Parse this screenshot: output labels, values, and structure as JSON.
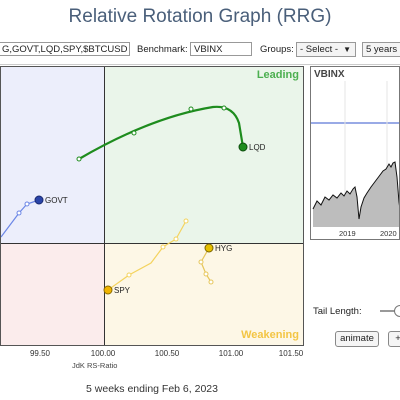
{
  "header": {
    "title": "Relative Rotation Graph (RRG)"
  },
  "controls": {
    "symbols_value": "G,GOVT,LQD,SPY,$BTCUSD",
    "benchmark_label": "Benchmark:",
    "benchmark_value": "VBINX",
    "groups_label": "Groups:",
    "groups_selected": "- Select -",
    "period_selected": "5 years"
  },
  "quadrants": {
    "leading": "Leading",
    "weakening": "Weakening"
  },
  "x_axis": {
    "label": "JdK RS-Ratio",
    "ticks": [
      "99.50",
      "100.00",
      "100.50",
      "101.00",
      "101.50"
    ]
  },
  "symbols": [
    {
      "name": "LQD",
      "color": "#1e8c1e"
    },
    {
      "name": "GOVT",
      "color": "#3a5fcd"
    },
    {
      "name": "HYG",
      "color": "#e6c000"
    },
    {
      "name": "SPY",
      "color": "#f2c12e"
    }
  ],
  "mini_chart": {
    "symbol": "VBINX",
    "years": [
      "2019",
      "2020"
    ]
  },
  "tail": {
    "label": "Tail Length:"
  },
  "buttons": {
    "animate": "animate",
    "plus": "+"
  },
  "footer": {
    "period_text": "5 weeks ending Feb 6, 2023"
  }
}
